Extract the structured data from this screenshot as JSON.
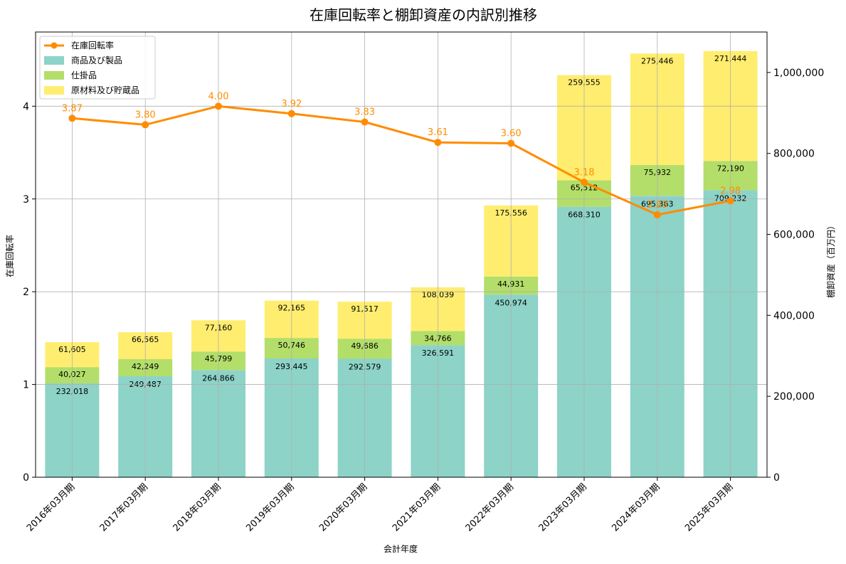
{
  "chart_data": {
    "type": "bar",
    "title": "在庫回転率と棚卸資産の内訳別推移",
    "xlabel": "会計年度",
    "ylabel_left": "在庫回転率",
    "ylabel_right": "棚卸資産（百万円）",
    "categories": [
      "2016年03月期",
      "2017年03月期",
      "2018年03月期",
      "2019年03月期",
      "2020年03月期",
      "2021年03月期",
      "2022年03月期",
      "2023年03月期",
      "2024年03月期",
      "2025年03月期"
    ],
    "stacked": true,
    "series": [
      {
        "name": "商品及び製品",
        "color": "#8dd3c7",
        "values": [
          232018,
          249487,
          264866,
          293445,
          292579,
          326591,
          450974,
          668310,
          695363,
          709232
        ],
        "labels": [
          "232,018",
          "249,487",
          "264,866",
          "293,445",
          "292,579",
          "326,591",
          "450,974",
          "668,310",
          "695,363",
          "709,232"
        ]
      },
      {
        "name": "仕掛品",
        "color": "#b3de69",
        "values": [
          40027,
          42249,
          45799,
          50746,
          49686,
          34766,
          44931,
          65512,
          75932,
          72190
        ],
        "labels": [
          "40,027",
          "42,249",
          "45,799",
          "50,746",
          "49,686",
          "34,766",
          "44,931",
          "65,512",
          "75,932",
          "72,190"
        ]
      },
      {
        "name": "原材料及び貯蔵品",
        "color": "#ffed6f",
        "values": [
          61605,
          66565,
          77160,
          92165,
          91517,
          108039,
          175556,
          259555,
          275446,
          271444
        ],
        "labels": [
          "61,605",
          "66,565",
          "77,160",
          "92,165",
          "91,517",
          "108,039",
          "175,556",
          "259,555",
          "275,446",
          "271,444"
        ]
      }
    ],
    "line": {
      "name": "在庫回転率",
      "color": "#ff8c00",
      "values": [
        3.87,
        3.8,
        4.0,
        3.92,
        3.83,
        3.61,
        3.6,
        3.18,
        2.83,
        2.98
      ],
      "labels": [
        "3.87",
        "3.80",
        "4.00",
        "3.92",
        "3.83",
        "3.61",
        "3.60",
        "3.18",
        "2.83",
        "2.98"
      ]
    },
    "ylim_left": [
      0,
      4.8
    ],
    "ylim_right": [
      0,
      1100000
    ],
    "yticks_left": [
      0,
      1,
      2,
      3,
      4
    ],
    "yticks_left_labels": [
      "0",
      "1",
      "2",
      "3",
      "4"
    ],
    "yticks_right": [
      0,
      200000,
      400000,
      600000,
      800000,
      1000000
    ],
    "yticks_right_labels": [
      "0",
      "200,000",
      "400,000",
      "600,000",
      "800,000",
      "1,000,000"
    ],
    "grid": true,
    "legend_position": "top-left"
  }
}
